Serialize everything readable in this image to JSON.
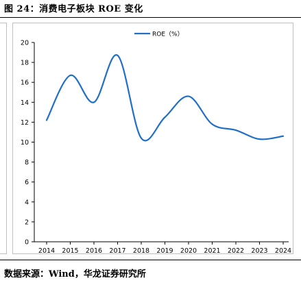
{
  "figure": {
    "title": "图 24：消费电子板块 ROE 变化",
    "source": "数据来源：Wind，华龙证券研究所"
  },
  "chart_data": {
    "type": "line",
    "x": [
      "2014",
      "2015",
      "2016",
      "2017",
      "2018",
      "2019",
      "2020",
      "2021",
      "2022",
      "2023",
      "2024"
    ],
    "series": [
      {
        "name": "ROE（%）",
        "color": "#1f6fc9",
        "smooth": true,
        "values": [
          12.2,
          16.7,
          14.0,
          18.7,
          10.4,
          12.5,
          14.6,
          11.8,
          11.2,
          10.3,
          10.6
        ]
      }
    ],
    "ylim": [
      0,
      20
    ],
    "yticks": [
      "0",
      "2",
      "4",
      "6",
      "8",
      "10",
      "12",
      "14",
      "16",
      "18",
      "20"
    ],
    "grid": false,
    "legend": "top-center",
    "xlabel": "",
    "ylabel": ""
  }
}
